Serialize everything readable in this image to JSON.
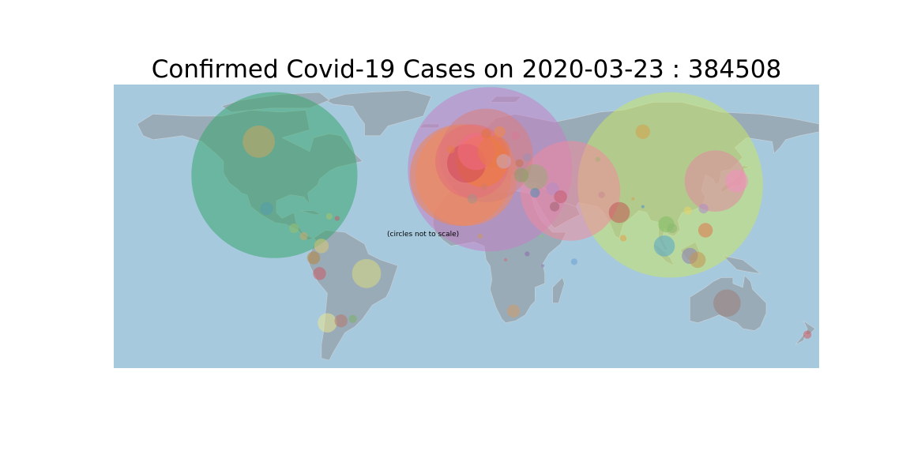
{
  "title": "Confirmed Covid-19 Cases on 2020-03-23 : 384508",
  "note": "(circles not to scale)",
  "colors": {
    "ocean": "#a6c9de",
    "land": "#9aabb8",
    "land_stroke": "#c9d3da"
  },
  "chart_data": {
    "type": "bubble-map",
    "date": "2020-03-23",
    "total_confirmed": 384508,
    "projection": "equirectangular",
    "lon_range": [
      -180,
      180
    ],
    "lat_range": [
      -58,
      86
    ],
    "bubbles": [
      {
        "lon": -98,
        "lat": 40,
        "size": 10.3,
        "color": "#3aa66e"
      },
      {
        "lon": 12,
        "lat": 43,
        "size": 10.2,
        "color": "#c47fc6"
      },
      {
        "lon": 104,
        "lat": 35,
        "size": 11.5,
        "color": "#c9e36a"
      },
      {
        "lon": 53,
        "lat": 32,
        "size": 6.2,
        "color": "#f08a9c"
      },
      {
        "lon": -3,
        "lat": 40,
        "size": 6.3,
        "color": "#ef8550"
      },
      {
        "lon": 0,
        "lat": 40,
        "size": 6.3,
        "color": "#f28a5c"
      },
      {
        "lon": 10,
        "lat": 50,
        "size": 5.8,
        "color": "#d9807b"
      },
      {
        "lon": 3,
        "lat": 47,
        "size": 4.6,
        "color": "#e46f7a"
      },
      {
        "lon": 8,
        "lat": 47,
        "size": 3.2,
        "color": "#f07c34"
      },
      {
        "lon": 127,
        "lat": 37,
        "size": 3.8,
        "color": "#e08aa0"
      },
      {
        "lon": 5,
        "lat": 52,
        "size": 2.3,
        "color": "#f16c86"
      },
      {
        "lon": 0,
        "lat": 46,
        "size": 2.4,
        "color": "#d14a5a"
      },
      {
        "lon": 14,
        "lat": 52,
        "size": 2.0,
        "color": "#e87a48"
      },
      {
        "lon": -106,
        "lat": 57,
        "size": 2.0,
        "color": "#c9a560"
      },
      {
        "lon": 133,
        "lat": -25,
        "size": 1.7,
        "color": "#9b7d78"
      },
      {
        "lon": -51,
        "lat": -10,
        "size": 1.8,
        "color": "#d9db80"
      },
      {
        "lon": 35,
        "lat": 39,
        "size": 1.6,
        "color": "#9ba878"
      },
      {
        "lon": 138,
        "lat": 37,
        "size": 1.4,
        "color": "#f490be"
      },
      {
        "lon": 101,
        "lat": 4,
        "size": 1.3,
        "color": "#53a5c9"
      },
      {
        "lon": 114,
        "lat": -1,
        "size": 1.0,
        "color": "#8b7bb8"
      },
      {
        "lon": 102,
        "lat": 15,
        "size": 1.0,
        "color": "#7fbd65"
      },
      {
        "lon": 78,
        "lat": 21,
        "size": 1.3,
        "color": "#c25a56"
      },
      {
        "lon": 122,
        "lat": 12,
        "size": 0.9,
        "color": "#e0774a"
      },
      {
        "lon": 118,
        "lat": -3,
        "size": 1.0,
        "color": "#c59551"
      },
      {
        "lon": 90,
        "lat": 62,
        "size": 0.9,
        "color": "#d4a04a"
      },
      {
        "lon": -71,
        "lat": -35,
        "size": 1.2,
        "color": "#e8e690"
      },
      {
        "lon": -64,
        "lat": -34,
        "size": 0.8,
        "color": "#b5786a"
      },
      {
        "lon": -75,
        "lat": -10,
        "size": 0.8,
        "color": "#c95b64"
      },
      {
        "lon": -74,
        "lat": 4,
        "size": 0.9,
        "color": "#d9c873"
      },
      {
        "lon": -78,
        "lat": -2,
        "size": 0.8,
        "color": "#b5853c"
      },
      {
        "lon": -102,
        "lat": 23,
        "size": 0.8,
        "color": "#529aad"
      },
      {
        "lon": 24,
        "lat": -29,
        "size": 0.8,
        "color": "#d09a6a"
      },
      {
        "lon": 44,
        "lat": 33,
        "size": 0.8,
        "color": "#b38cc4"
      },
      {
        "lon": 48,
        "lat": 29,
        "size": 0.8,
        "color": "#c45a6e"
      },
      {
        "lon": 45,
        "lat": 24,
        "size": 0.6,
        "color": "#a06070"
      },
      {
        "lon": 28,
        "lat": 40,
        "size": 0.9,
        "color": "#8c9e68"
      },
      {
        "lon": 19,
        "lat": 47,
        "size": 0.9,
        "color": "#c6a9c0"
      },
      {
        "lon": 31,
        "lat": 49,
        "size": 0.5,
        "color": "#9a8fb0"
      },
      {
        "lon": 27,
        "lat": 46,
        "size": 0.5,
        "color": "#c9734c"
      },
      {
        "lon": -88,
        "lat": 13,
        "size": 0.6,
        "color": "#98c072"
      },
      {
        "lon": -83,
        "lat": 9,
        "size": 0.5,
        "color": "#c9a76a"
      },
      {
        "lon": 3,
        "lat": 28,
        "size": 0.6,
        "color": "#a88f86"
      },
      {
        "lon": 9,
        "lat": 34,
        "size": 0.4,
        "color": "#cf7a6a"
      },
      {
        "lon": 55,
        "lat": -4,
        "size": 0.4,
        "color": "#6aa0d4"
      },
      {
        "lon": 121,
        "lat": 23,
        "size": 0.6,
        "color": "#b18ac6"
      },
      {
        "lon": 105,
        "lat": 13,
        "size": 0.6,
        "color": "#88b870"
      },
      {
        "lon": 113,
        "lat": 22,
        "size": 0.5,
        "color": "#e6d466"
      },
      {
        "lon": 80,
        "lat": 8,
        "size": 0.4,
        "color": "#e1a34a"
      },
      {
        "lon": 174,
        "lat": -41,
        "size": 0.5,
        "color": "#cf5a60"
      },
      {
        "lon": 31,
        "lat": 0,
        "size": 0.3,
        "color": "#8c6aa8"
      },
      {
        "lon": 7,
        "lat": 9,
        "size": 0.3,
        "color": "#cc9a55"
      },
      {
        "lon": -70,
        "lat": 19,
        "size": 0.4,
        "color": "#a8c26c"
      },
      {
        "lon": -66,
        "lat": 18,
        "size": 0.3,
        "color": "#c45a6e"
      },
      {
        "lon": -58,
        "lat": -33,
        "size": 0.5,
        "color": "#7ab068"
      },
      {
        "lon": 35,
        "lat": 31,
        "size": 0.6,
        "color": "#4f8bb0"
      },
      {
        "lon": 25,
        "lat": 60,
        "size": 0.5,
        "color": "#d77a95"
      },
      {
        "lon": 17,
        "lat": 62,
        "size": 0.7,
        "color": "#f08a4a"
      },
      {
        "lon": 10,
        "lat": 61,
        "size": 0.6,
        "color": "#e07540"
      },
      {
        "lon": -8,
        "lat": 53,
        "size": 0.5,
        "color": "#e77d4a"
      },
      {
        "lon": 69,
        "lat": 30,
        "size": 0.4,
        "color": "#c98a90"
      },
      {
        "lon": 67,
        "lat": 48,
        "size": 0.3,
        "color": "#a3b073"
      },
      {
        "lon": 85,
        "lat": 28,
        "size": 0.2,
        "color": "#d3a050"
      },
      {
        "lon": 90,
        "lat": 24,
        "size": 0.2,
        "color": "#4a90c8"
      },
      {
        "lon": 39,
        "lat": -6,
        "size": 0.2,
        "color": "#8e7ab0"
      },
      {
        "lon": 20,
        "lat": -3,
        "size": 0.2,
        "color": "#d46a6a"
      },
      {
        "lon": 38,
        "lat": 9,
        "size": 0.2,
        "color": "#8ac47c"
      }
    ]
  }
}
